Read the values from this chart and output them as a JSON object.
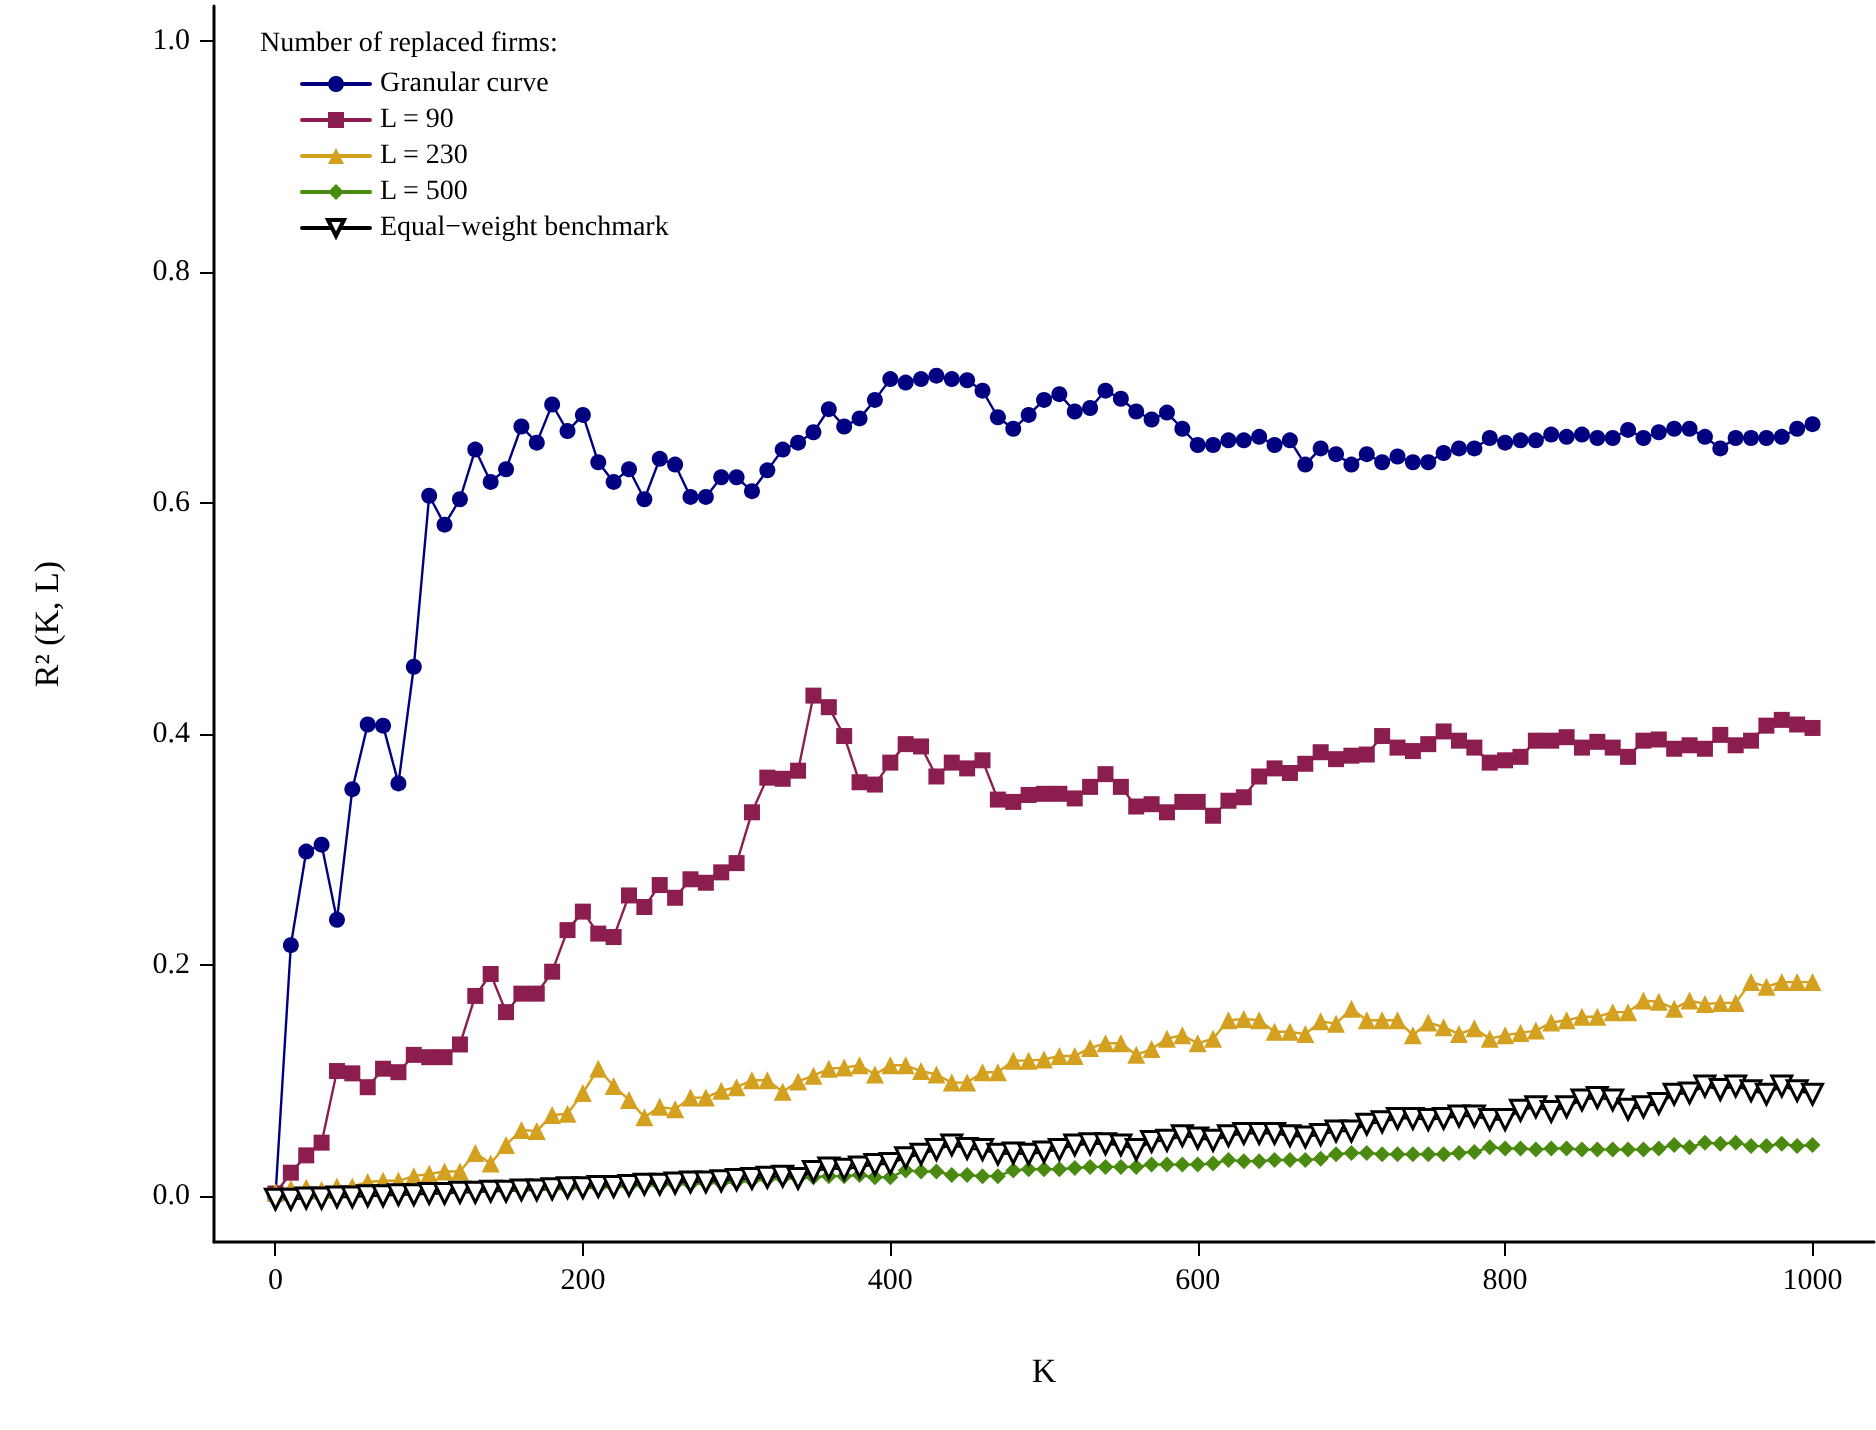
{
  "chart_data": {
    "type": "line",
    "xlabel": "K",
    "ylabel": "R² (K, L)",
    "legend_title": "Number of replaced firms:",
    "legend": "top left",
    "grid": false,
    "x": [
      0,
      10,
      20,
      30,
      40,
      50,
      60,
      70,
      80,
      90,
      100,
      110,
      120,
      130,
      140,
      150,
      160,
      170,
      180,
      190,
      200,
      210,
      220,
      230,
      240,
      250,
      260,
      270,
      280,
      290,
      300,
      310,
      320,
      330,
      340,
      350,
      360,
      370,
      380,
      390,
      400,
      410,
      420,
      430,
      440,
      450,
      460,
      470,
      480,
      490,
      500,
      510,
      520,
      530,
      540,
      550,
      560,
      570,
      580,
      590,
      600,
      610,
      620,
      630,
      640,
      650,
      660,
      670,
      680,
      690,
      700,
      710,
      720,
      730,
      740,
      750,
      760,
      770,
      780,
      790,
      800,
      810,
      820,
      830,
      840,
      850,
      860,
      870,
      880,
      890,
      900,
      910,
      920,
      930,
      940,
      950,
      960,
      970,
      980,
      990,
      1000
    ],
    "xlim": [
      -40,
      1040
    ],
    "xticks": [
      0,
      200,
      400,
      600,
      800,
      1000
    ],
    "ylim": [
      -0.04,
      1.03
    ],
    "yticks": [
      {
        "value": 0,
        "label": "0.0"
      },
      {
        "value": 0.2,
        "label": "0.2"
      },
      {
        "value": 0.4,
        "label": "0.4"
      },
      {
        "value": 0.6,
        "label": "0.6"
      },
      {
        "value": 0.8,
        "label": "0.8"
      },
      {
        "value": 1,
        "label": "1.0"
      }
    ],
    "series": [
      {
        "name": "Granular curve",
        "color": "#000080",
        "marker": "circle",
        "values": [
          0,
          0.217,
          0.298,
          0.304,
          0.239,
          0.352,
          0.408,
          0.407,
          0.357,
          0.458,
          0.606,
          0.581,
          0.603,
          0.646,
          0.618,
          0.629,
          0.666,
          0.652,
          0.685,
          0.662,
          0.676,
          0.635,
          0.618,
          0.629,
          0.603,
          0.638,
          0.633,
          0.605,
          0.605,
          0.622,
          0.622,
          0.61,
          0.628,
          0.646,
          0.652,
          0.661,
          0.681,
          0.666,
          0.673,
          0.689,
          0.707,
          0.704,
          0.707,
          0.71,
          0.707,
          0.706,
          0.697,
          0.674,
          0.664,
          0.676,
          0.689,
          0.694,
          0.679,
          0.682,
          0.697,
          0.69,
          0.679,
          0.672,
          0.678,
          0.664,
          0.65,
          0.65,
          0.654,
          0.654,
          0.657,
          0.65,
          0.654,
          0.633,
          0.647,
          0.642,
          0.633,
          0.642,
          0.635,
          0.64,
          0.635,
          0.635,
          0.643,
          0.647,
          0.647,
          0.656,
          0.652,
          0.654,
          0.654,
          0.659,
          0.657,
          0.659,
          0.656,
          0.656,
          0.663,
          0.656,
          0.661,
          0.664,
          0.664,
          0.657,
          0.647,
          0.656,
          0.656,
          0.656,
          0.657,
          0.664,
          0.668
        ]
      },
      {
        "name": "L = 90",
        "color": "#8b1e4e",
        "marker": "square",
        "values": [
          0.002,
          0.02,
          0.035,
          0.046,
          0.108,
          0.106,
          0.094,
          0.11,
          0.107,
          0.122,
          0.12,
          0.12,
          0.131,
          0.173,
          0.192,
          0.159,
          0.175,
          0.175,
          0.194,
          0.23,
          0.246,
          0.227,
          0.224,
          0.26,
          0.25,
          0.269,
          0.258,
          0.274,
          0.271,
          0.28,
          0.288,
          0.332,
          0.362,
          0.361,
          0.368,
          0.433,
          0.423,
          0.398,
          0.358,
          0.356,
          0.375,
          0.391,
          0.389,
          0.363,
          0.375,
          0.37,
          0.377,
          0.343,
          0.341,
          0.347,
          0.348,
          0.348,
          0.344,
          0.354,
          0.365,
          0.354,
          0.337,
          0.339,
          0.332,
          0.341,
          0.341,
          0.329,
          0.342,
          0.345,
          0.363,
          0.37,
          0.366,
          0.374,
          0.384,
          0.378,
          0.381,
          0.382,
          0.398,
          0.388,
          0.385,
          0.391,
          0.402,
          0.394,
          0.388,
          0.375,
          0.377,
          0.38,
          0.394,
          0.394,
          0.397,
          0.388,
          0.393,
          0.388,
          0.38,
          0.394,
          0.395,
          0.387,
          0.39,
          0.387,
          0.399,
          0.39,
          0.394,
          0.407,
          0.412,
          0.408,
          0.405
        ]
      },
      {
        "name": "L = 230",
        "color": "#d4a020",
        "marker": "triangle",
        "values": [
          0.003,
          0.006,
          0.007,
          0.005,
          0.008,
          0.008,
          0.012,
          0.013,
          0.013,
          0.017,
          0.019,
          0.021,
          0.021,
          0.037,
          0.028,
          0.044,
          0.057,
          0.056,
          0.07,
          0.071,
          0.089,
          0.11,
          0.095,
          0.083,
          0.068,
          0.077,
          0.075,
          0.085,
          0.085,
          0.091,
          0.094,
          0.1,
          0.1,
          0.09,
          0.099,
          0.104,
          0.11,
          0.111,
          0.113,
          0.105,
          0.113,
          0.113,
          0.108,
          0.105,
          0.098,
          0.098,
          0.107,
          0.107,
          0.117,
          0.117,
          0.118,
          0.121,
          0.121,
          0.128,
          0.132,
          0.132,
          0.122,
          0.127,
          0.136,
          0.139,
          0.132,
          0.136,
          0.152,
          0.153,
          0.152,
          0.142,
          0.142,
          0.14,
          0.151,
          0.149,
          0.162,
          0.152,
          0.152,
          0.152,
          0.139,
          0.15,
          0.146,
          0.14,
          0.145,
          0.136,
          0.139,
          0.141,
          0.143,
          0.15,
          0.152,
          0.155,
          0.155,
          0.159,
          0.159,
          0.169,
          0.168,
          0.162,
          0.169,
          0.166,
          0.167,
          0.167,
          0.185,
          0.181,
          0.185,
          0.185,
          0.185
        ]
      },
      {
        "name": "L = 500",
        "color": "#4a8a10",
        "marker": "diamond",
        "values": [
          null,
          null,
          null,
          null,
          null,
          null,
          null,
          null,
          null,
          null,
          null,
          0.003,
          0.004,
          0.004,
          0.005,
          0.005,
          0.005,
          0.006,
          0.006,
          0.006,
          0.007,
          0.007,
          0.008,
          0.008,
          0.009,
          0.009,
          0.01,
          0.01,
          0.011,
          0.011,
          0.012,
          0.013,
          0.014,
          0.015,
          0.015,
          0.016,
          0.017,
          0.017,
          0.018,
          0.016,
          0.016,
          0.022,
          0.021,
          0.021,
          0.018,
          0.018,
          0.017,
          0.017,
          0.022,
          0.023,
          0.023,
          0.023,
          0.024,
          0.025,
          0.025,
          0.025,
          0.025,
          0.027,
          0.027,
          0.027,
          0.027,
          0.028,
          0.031,
          0.03,
          0.03,
          0.031,
          0.031,
          0.031,
          0.032,
          0.036,
          0.037,
          0.037,
          0.036,
          0.036,
          0.036,
          0.036,
          0.036,
          0.037,
          0.038,
          0.042,
          0.041,
          0.041,
          0.04,
          0.041,
          0.041,
          0.04,
          0.04,
          0.04,
          0.04,
          0.04,
          0.041,
          0.044,
          0.042,
          0.046,
          0.045,
          0.046,
          0.043,
          0.043,
          0.045,
          0.043,
          0.044
        ]
      },
      {
        "name": "Equal−weight benchmark",
        "color": "#000000",
        "marker": "triangle-down",
        "values": [
          -0.003,
          -0.003,
          -0.002,
          -0.002,
          -0.001,
          -0.001,
          0,
          0,
          0.001,
          0.001,
          0.002,
          0.002,
          0.003,
          0.003,
          0.004,
          0.004,
          0.005,
          0.005,
          0.006,
          0.007,
          0.007,
          0.008,
          0.008,
          0.009,
          0.01,
          0.01,
          0.011,
          0.012,
          0.012,
          0.013,
          0.014,
          0.015,
          0.016,
          0.017,
          0.015,
          0.021,
          0.024,
          0.023,
          0.025,
          0.027,
          0.028,
          0.033,
          0.036,
          0.04,
          0.044,
          0.041,
          0.04,
          0.036,
          0.037,
          0.036,
          0.038,
          0.04,
          0.044,
          0.045,
          0.045,
          0.044,
          0.04,
          0.047,
          0.048,
          0.052,
          0.05,
          0.048,
          0.052,
          0.054,
          0.054,
          0.054,
          0.052,
          0.051,
          0.053,
          0.056,
          0.056,
          0.062,
          0.064,
          0.067,
          0.067,
          0.066,
          0.067,
          0.069,
          0.069,
          0.066,
          0.066,
          0.074,
          0.077,
          0.073,
          0.077,
          0.083,
          0.085,
          0.083,
          0.075,
          0.077,
          0.08,
          0.088,
          0.089,
          0.095,
          0.092,
          0.095,
          0.091,
          0.088,
          0.095,
          0.091,
          0.088
        ]
      }
    ]
  }
}
